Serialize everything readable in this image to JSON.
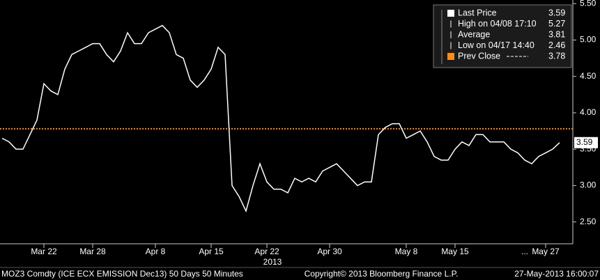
{
  "chart_data": {
    "type": "line",
    "categories": [
      null,
      null,
      null,
      null,
      null,
      null,
      "Mar 22",
      null,
      null,
      null,
      null,
      null,
      null,
      "Mar 28",
      null,
      null,
      null,
      null,
      null,
      null,
      null,
      null,
      "Apr 8",
      null,
      null,
      null,
      null,
      null,
      null,
      null,
      "Apr 15",
      null,
      null,
      null,
      null,
      null,
      null,
      null,
      "Apr 22",
      null,
      null,
      null,
      null,
      null,
      null,
      null,
      null,
      "Apr 30",
      null,
      null,
      null,
      null,
      null,
      null,
      null,
      null,
      null,
      null,
      "May 8",
      null,
      null,
      null,
      null,
      null,
      null,
      "May 15",
      null,
      null,
      null,
      null,
      null,
      null,
      null,
      null,
      null,
      "...",
      null,
      null,
      "May 27",
      null,
      null
    ],
    "x_label": "2013",
    "series": [
      {
        "name": "Last Price",
        "color": "#ffffff",
        "values": [
          3.65,
          3.6,
          3.5,
          3.5,
          3.7,
          3.9,
          4.4,
          4.3,
          4.25,
          4.6,
          4.8,
          4.85,
          4.9,
          4.95,
          4.95,
          4.8,
          4.7,
          4.85,
          5.1,
          4.95,
          4.95,
          5.1,
          5.15,
          5.2,
          5.1,
          4.8,
          4.75,
          4.45,
          4.35,
          4.45,
          4.6,
          4.9,
          4.8,
          3.0,
          2.85,
          2.65,
          3.0,
          3.3,
          3.05,
          2.95,
          2.95,
          2.9,
          3.1,
          3.05,
          3.1,
          3.05,
          3.2,
          3.25,
          3.3,
          3.2,
          3.1,
          3.0,
          3.05,
          3.05,
          3.7,
          3.8,
          3.85,
          3.85,
          3.65,
          3.7,
          3.75,
          3.6,
          3.4,
          3.35,
          3.35,
          3.5,
          3.6,
          3.55,
          3.7,
          3.7,
          3.6,
          3.6,
          3.6,
          3.5,
          3.45,
          3.35,
          3.3,
          3.4,
          3.45,
          3.5,
          3.59
        ]
      }
    ],
    "ylim": [
      2.2,
      5.55
    ],
    "yticks": [
      {
        "value": 2.5,
        "label": "2.50"
      },
      {
        "value": 3,
        "label": "3.00"
      },
      {
        "value": 3.5,
        "label": "3.50"
      },
      {
        "value": 4,
        "label": "4.00"
      },
      {
        "value": 4.5,
        "label": "4.50"
      },
      {
        "value": 5,
        "label": "5.00"
      },
      {
        "value": 5.5,
        "label": "5.50"
      }
    ],
    "stats": [
      {
        "label": "Last Price",
        "value": 3.59
      },
      {
        "label": "High on 04/08 17:10",
        "value": 5.27
      },
      {
        "label": "Average",
        "value": 3.81
      },
      {
        "label": "Low on 04/17 14:40",
        "value": 2.46
      },
      {
        "label": "Prev Close",
        "value": 3.78,
        "color": "#ff8c1a"
      }
    ],
    "footer": {
      "left": "MOZ3 Comdty (ICE ECX EMISSION  Dec13) 50 Days 50 Minutes",
      "center": "Copyright© 2013 Bloomberg Finance L.P.",
      "right": "27-May-2013 16:00:07"
    }
  }
}
